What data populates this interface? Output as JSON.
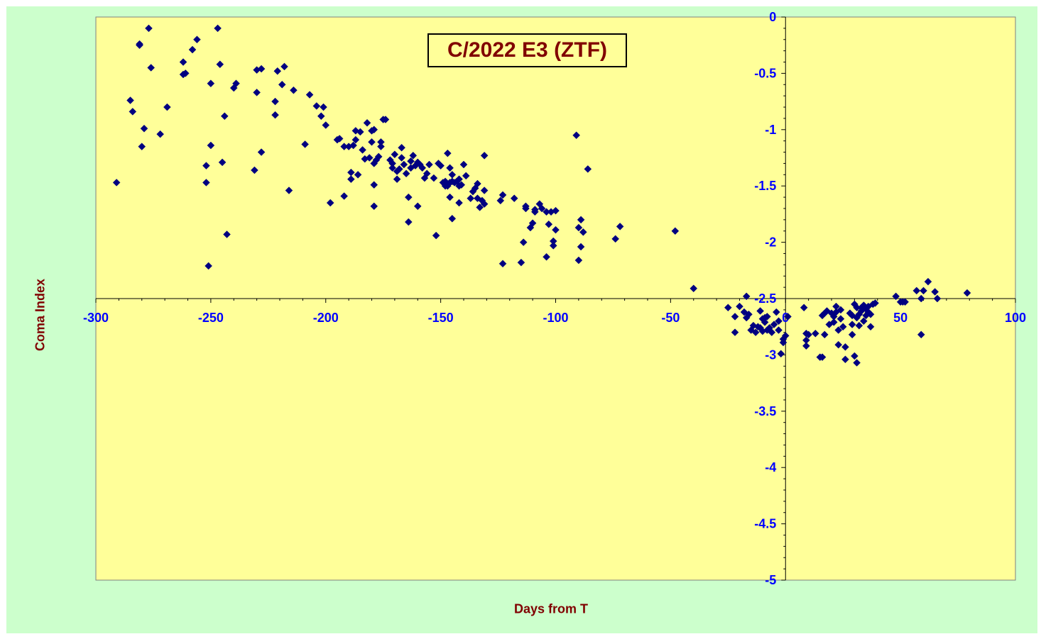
{
  "chart_data": {
    "type": "scatter",
    "title": "C/2022 E3 (ZTF)",
    "xlabel": "Days from T",
    "ylabel": "Coma Index",
    "xlim": [
      -300,
      100
    ],
    "ylim": [
      -5,
      0
    ],
    "xticks": [
      -300,
      -250,
      -200,
      -150,
      -100,
      -50,
      0,
      50,
      100
    ],
    "yticks": [
      0,
      -0.5,
      -1,
      -1.5,
      -2,
      -2.5,
      -3,
      -3.5,
      -4,
      -4.5,
      -5
    ],
    "grid": false,
    "colors": {
      "background": "#ccffcc",
      "plot_area": "#ffff99",
      "marker": "#000080",
      "tick_labels": "#0000ff",
      "titles": "#800000"
    },
    "series": [
      {
        "marker": "diamond",
        "points": [
          [
            -291,
            -1.47
          ],
          [
            -285,
            -0.74
          ],
          [
            -284,
            -0.84
          ],
          [
            -281,
            -0.24
          ],
          [
            -281,
            -0.25
          ],
          [
            -280,
            -1.15
          ],
          [
            -279,
            -0.99
          ],
          [
            -277,
            -0.1
          ],
          [
            -276,
            -0.45
          ],
          [
            -272,
            -1.04
          ],
          [
            -269,
            -0.8
          ],
          [
            -262,
            -0.51
          ],
          [
            -262,
            -0.4
          ],
          [
            -261,
            -0.5
          ],
          [
            -258,
            -0.29
          ],
          [
            -256,
            -0.2
          ],
          [
            -252,
            -1.32
          ],
          [
            -252,
            -1.47
          ],
          [
            -251,
            -2.21
          ],
          [
            -250,
            -0.59
          ],
          [
            -250,
            -1.14
          ],
          [
            -247,
            -0.1
          ],
          [
            -246,
            -0.42
          ],
          [
            -245,
            -1.29
          ],
          [
            -244,
            -0.88
          ],
          [
            -243,
            -1.93
          ],
          [
            -240,
            -0.63
          ],
          [
            -239,
            -0.59
          ],
          [
            -231,
            -1.36
          ],
          [
            -230,
            -0.67
          ],
          [
            -230,
            -0.47
          ],
          [
            -228,
            -0.46
          ],
          [
            -228,
            -1.2
          ],
          [
            -222,
            -0.75
          ],
          [
            -222,
            -0.87
          ],
          [
            -221,
            -0.48
          ],
          [
            -219,
            -0.6
          ],
          [
            -218,
            -0.44
          ],
          [
            -216,
            -1.54
          ],
          [
            -214,
            -0.65
          ],
          [
            -209,
            -1.13
          ],
          [
            -207,
            -0.69
          ],
          [
            -204,
            -0.79
          ],
          [
            -202,
            -0.88
          ],
          [
            -201,
            -0.8
          ],
          [
            -200,
            -0.96
          ],
          [
            -198,
            -1.65
          ],
          [
            -195,
            -1.09
          ],
          [
            -194,
            -1.08
          ],
          [
            -192,
            -1.15
          ],
          [
            -192,
            -1.59
          ],
          [
            -190,
            -1.15
          ],
          [
            -189,
            -1.44
          ],
          [
            -189,
            -1.38
          ],
          [
            -188,
            -1.14
          ],
          [
            -187,
            -1.01
          ],
          [
            -187,
            -1.09
          ],
          [
            -186,
            -1.4
          ],
          [
            -185,
            -1.02
          ],
          [
            -184,
            -1.18
          ],
          [
            -183,
            -1.26
          ],
          [
            -182,
            -0.94
          ],
          [
            -181,
            -1.25
          ],
          [
            -180,
            -1.01
          ],
          [
            -180,
            -1.11
          ],
          [
            -179,
            -1.0
          ],
          [
            -179,
            -1.3
          ],
          [
            -179,
            -1.49
          ],
          [
            -179,
            -1.68
          ],
          [
            -178,
            -1.27
          ],
          [
            -177,
            -1.24
          ],
          [
            -176,
            -1.11
          ],
          [
            -176,
            -1.15
          ],
          [
            -175,
            -0.91
          ],
          [
            -174,
            -0.91
          ],
          [
            -172,
            -1.27
          ],
          [
            -171,
            -1.3
          ],
          [
            -171,
            -1.34
          ],
          [
            -170,
            -1.22
          ],
          [
            -169,
            -1.37
          ],
          [
            -169,
            -1.44
          ],
          [
            -168,
            -1.35
          ],
          [
            -167,
            -1.16
          ],
          [
            -167,
            -1.25
          ],
          [
            -166,
            -1.31
          ],
          [
            -165,
            -1.39
          ],
          [
            -164,
            -1.6
          ],
          [
            -164,
            -1.82
          ],
          [
            -163,
            -1.34
          ],
          [
            -163,
            -1.28
          ],
          [
            -162,
            -1.23
          ],
          [
            -161,
            -1.32
          ],
          [
            -160,
            -1.68
          ],
          [
            -160,
            -1.29
          ],
          [
            -159,
            -1.31
          ],
          [
            -158,
            -1.34
          ],
          [
            -157,
            -1.43
          ],
          [
            -156,
            -1.39
          ],
          [
            -155,
            -1.31
          ],
          [
            -153,
            -1.43
          ],
          [
            -152,
            -1.94
          ],
          [
            -151,
            -1.3
          ],
          [
            -150,
            -1.32
          ],
          [
            -149,
            -1.47
          ],
          [
            -148,
            -1.46
          ],
          [
            -148,
            -1.5
          ],
          [
            -147,
            -1.21
          ],
          [
            -147,
            -1.5
          ],
          [
            -146,
            -1.6
          ],
          [
            -146,
            -1.34
          ],
          [
            -146,
            -1.47
          ],
          [
            -145,
            -1.46
          ],
          [
            -145,
            -1.4
          ],
          [
            -145,
            -1.79
          ],
          [
            -144,
            -1.47
          ],
          [
            -143,
            -1.46
          ],
          [
            -142,
            -1.44
          ],
          [
            -142,
            -1.5
          ],
          [
            -142,
            -1.65
          ],
          [
            -141,
            -1.49
          ],
          [
            -140,
            -1.31
          ],
          [
            -139,
            -1.41
          ],
          [
            -137,
            -1.61
          ],
          [
            -136,
            -1.55
          ],
          [
            -135,
            -1.52
          ],
          [
            -134,
            -1.61
          ],
          [
            -134,
            -1.48
          ],
          [
            -133,
            -1.69
          ],
          [
            -132,
            -1.63
          ],
          [
            -131,
            -1.23
          ],
          [
            -131,
            -1.54
          ],
          [
            -131,
            -1.66
          ],
          [
            -124,
            -1.63
          ],
          [
            -123,
            -1.58
          ],
          [
            -123,
            -2.19
          ],
          [
            -118,
            -1.61
          ],
          [
            -115,
            -2.18
          ],
          [
            -114,
            -2.0
          ],
          [
            -113,
            -1.7
          ],
          [
            -113,
            -1.68
          ],
          [
            -111,
            -1.87
          ],
          [
            -110,
            -1.83
          ],
          [
            -109,
            -1.71
          ],
          [
            -109,
            -1.73
          ],
          [
            -107,
            -1.66
          ],
          [
            -106,
            -1.7
          ],
          [
            -104,
            -1.73
          ],
          [
            -104,
            -2.13
          ],
          [
            -103,
            -1.84
          ],
          [
            -102,
            -1.73
          ],
          [
            -101,
            -2.03
          ],
          [
            -101,
            -1.99
          ],
          [
            -100,
            -1.72
          ],
          [
            -100,
            -1.89
          ],
          [
            -91,
            -1.05
          ],
          [
            -90,
            -1.87
          ],
          [
            -90,
            -2.16
          ],
          [
            -89,
            -1.8
          ],
          [
            -89,
            -2.04
          ],
          [
            -88,
            -1.91
          ],
          [
            -86,
            -1.35
          ],
          [
            -74,
            -1.97
          ],
          [
            -72,
            -1.86
          ],
          [
            -48,
            -1.9
          ],
          [
            -40,
            -2.41
          ],
          [
            -25,
            -2.58
          ],
          [
            -22,
            -2.8
          ],
          [
            -22,
            -2.66
          ],
          [
            -20,
            -2.57
          ],
          [
            -18,
            -2.62
          ],
          [
            -17,
            -2.48
          ],
          [
            -17,
            -2.67
          ],
          [
            -16,
            -2.64
          ],
          [
            -15,
            -2.78
          ],
          [
            -14,
            -2.74
          ],
          [
            -13,
            -2.8
          ],
          [
            -12,
            -2.75
          ],
          [
            -11,
            -2.76
          ],
          [
            -11,
            -2.61
          ],
          [
            -10,
            -2.68
          ],
          [
            -10,
            -2.79
          ],
          [
            -9,
            -2.71
          ],
          [
            -9,
            -2.67
          ],
          [
            -8,
            -2.66
          ],
          [
            -8,
            -2.78
          ],
          [
            -7,
            -2.76
          ],
          [
            -6,
            -2.8
          ],
          [
            -5,
            -2.73
          ],
          [
            -4,
            -2.62
          ],
          [
            -3,
            -2.78
          ],
          [
            -3,
            -2.7
          ],
          [
            -2,
            -2.99
          ],
          [
            -1,
            -2.86
          ],
          [
            -1,
            -2.89
          ],
          [
            0,
            -2.83
          ],
          [
            1,
            -2.66
          ],
          [
            8,
            -2.58
          ],
          [
            9,
            -2.81
          ],
          [
            9,
            -2.87
          ],
          [
            9,
            -2.92
          ],
          [
            10,
            -2.82
          ],
          [
            13,
            -2.81
          ],
          [
            15,
            -3.02
          ],
          [
            16,
            -2.65
          ],
          [
            16,
            -3.02
          ],
          [
            17,
            -2.63
          ],
          [
            17,
            -2.82
          ],
          [
            18,
            -2.61
          ],
          [
            19,
            -2.73
          ],
          [
            20,
            -2.63
          ],
          [
            21,
            -2.66
          ],
          [
            21,
            -2.71
          ],
          [
            22,
            -2.62
          ],
          [
            22,
            -2.57
          ],
          [
            23,
            -2.91
          ],
          [
            23,
            -2.78
          ],
          [
            24,
            -2.68
          ],
          [
            24,
            -2.6
          ],
          [
            25,
            -2.75
          ],
          [
            26,
            -2.93
          ],
          [
            26,
            -3.04
          ],
          [
            28,
            -2.63
          ],
          [
            29,
            -2.82
          ],
          [
            29,
            -2.73
          ],
          [
            29,
            -2.65
          ],
          [
            30,
            -3.01
          ],
          [
            30,
            -2.55
          ],
          [
            31,
            -3.07
          ],
          [
            31,
            -2.58
          ],
          [
            31,
            -2.67
          ],
          [
            32,
            -2.64
          ],
          [
            32,
            -2.74
          ],
          [
            33,
            -2.58
          ],
          [
            33,
            -2.61
          ],
          [
            34,
            -2.7
          ],
          [
            34,
            -2.56
          ],
          [
            35,
            -2.59
          ],
          [
            35,
            -2.65
          ],
          [
            36,
            -2.57
          ],
          [
            36,
            -2.62
          ],
          [
            37,
            -2.64
          ],
          [
            37,
            -2.75
          ],
          [
            38,
            -2.55
          ],
          [
            39,
            -2.54
          ],
          [
            48,
            -2.48
          ],
          [
            50,
            -2.53
          ],
          [
            51,
            -2.53
          ],
          [
            52,
            -2.53
          ],
          [
            57,
            -2.43
          ],
          [
            59,
            -2.5
          ],
          [
            59,
            -2.82
          ],
          [
            60,
            -2.43
          ],
          [
            62,
            -2.35
          ],
          [
            65,
            -2.44
          ],
          [
            66,
            -2.5
          ],
          [
            79,
            -2.45
          ]
        ]
      }
    ]
  }
}
